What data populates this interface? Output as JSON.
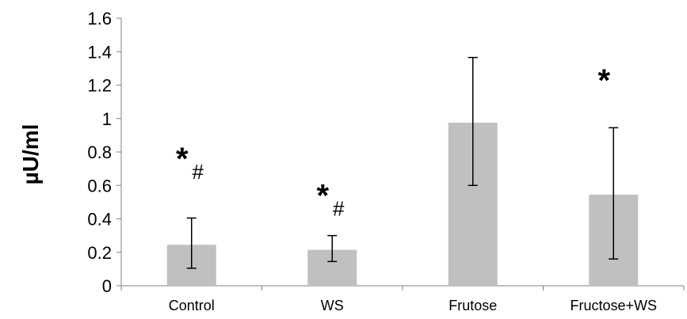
{
  "chart_data": {
    "type": "bar",
    "title": "",
    "xlabel": "",
    "ylabel": "µU/ml",
    "ylim": [
      0,
      1.6
    ],
    "yticks": [
      "0",
      "0.2",
      "0.4",
      "0.6",
      "0.8",
      "1",
      "1.2",
      "1.4",
      "1.6"
    ],
    "categories": [
      "Control",
      "WS",
      "Frutose",
      "Fructose+WS"
    ],
    "values": [
      0.245,
      0.215,
      0.975,
      0.545
    ],
    "error_low": [
      0.105,
      0.145,
      0.6,
      0.16
    ],
    "error_high": [
      0.405,
      0.3,
      1.365,
      0.945
    ],
    "bar_color": "#c0c0c0",
    "grid": false,
    "annotations": [
      {
        "category": "Control",
        "marks": [
          "*",
          "#"
        ],
        "y": 0.78
      },
      {
        "category": "WS",
        "marks": [
          "*",
          "#"
        ],
        "y": 0.56
      },
      {
        "category": "Fructose+WS",
        "marks": [
          "*"
        ],
        "y": 1.25
      }
    ]
  }
}
